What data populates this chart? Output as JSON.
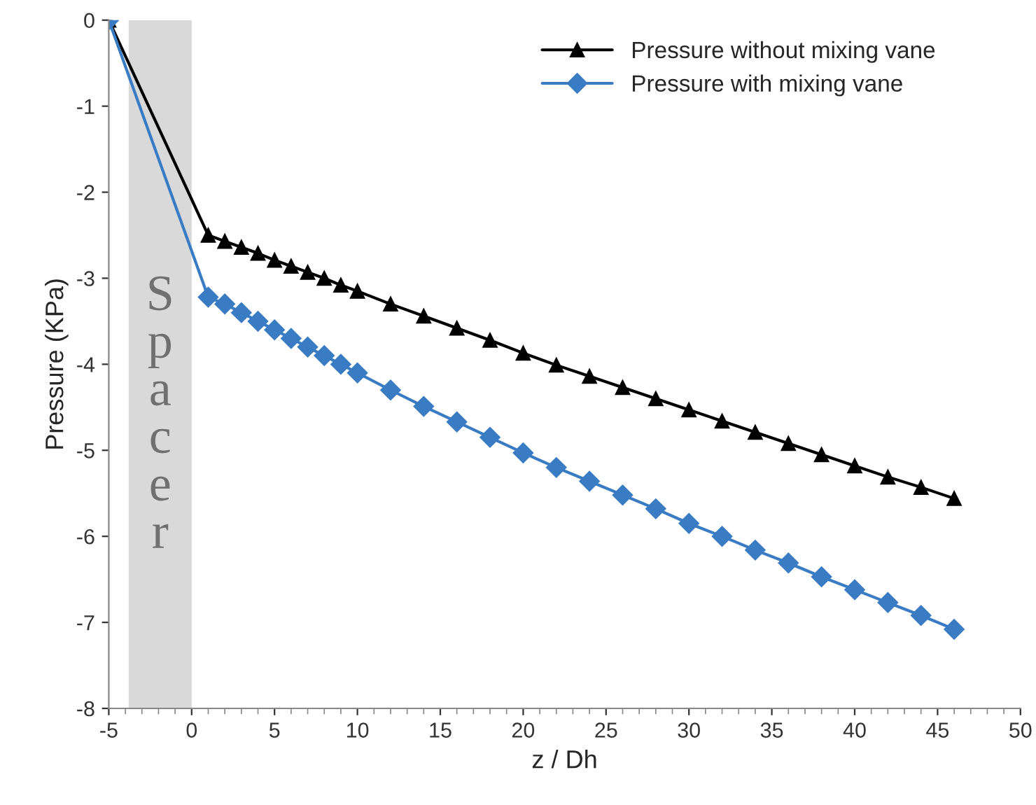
{
  "chart_data": {
    "type": "line",
    "xlabel": "z / Dh",
    "ylabel": "Pressure (KPa)",
    "series": [
      {
        "name": "Pressure without mixing vane",
        "color": "#000000",
        "marker": "triangle",
        "x": [
          -5,
          1,
          2,
          3,
          4,
          5,
          6,
          7,
          8,
          9,
          10,
          12,
          14,
          16,
          18,
          20,
          22,
          24,
          26,
          28,
          30,
          32,
          34,
          36,
          38,
          40,
          42,
          44,
          46
        ],
        "values": [
          0,
          -2.5,
          -2.57,
          -2.64,
          -2.71,
          -2.79,
          -2.86,
          -2.93,
          -3.0,
          -3.08,
          -3.15,
          -3.3,
          -3.44,
          -3.58,
          -3.72,
          -3.87,
          -4.01,
          -4.14,
          -4.27,
          -4.4,
          -4.53,
          -4.66,
          -4.79,
          -4.92,
          -5.05,
          -5.18,
          -5.31,
          -5.43,
          -5.56
        ]
      },
      {
        "name": "Pressure with mixing vane",
        "color": "#3a7cc4",
        "marker": "diamond",
        "x": [
          -5,
          1,
          2,
          3,
          4,
          5,
          6,
          7,
          8,
          9,
          10,
          12,
          14,
          16,
          18,
          20,
          22,
          24,
          26,
          28,
          30,
          32,
          34,
          36,
          38,
          40,
          42,
          44,
          46
        ],
        "values": [
          0,
          -3.22,
          -3.3,
          -3.4,
          -3.5,
          -3.6,
          -3.7,
          -3.8,
          -3.9,
          -4.0,
          -4.1,
          -4.3,
          -4.49,
          -4.67,
          -4.85,
          -5.03,
          -5.2,
          -5.36,
          -5.52,
          -5.68,
          -5.85,
          -6.0,
          -6.16,
          -6.31,
          -6.47,
          -6.62,
          -6.77,
          -6.92,
          -7.08
        ]
      }
    ],
    "bands": [
      {
        "axis": "x",
        "from": -3.8,
        "to": 0,
        "label": "Spacer",
        "color": "#d9d9d9"
      }
    ],
    "xlim": [
      -5,
      50
    ],
    "xticks": [
      -5,
      0,
      5,
      10,
      15,
      20,
      25,
      30,
      35,
      40,
      45,
      50
    ],
    "ylim": [
      -8,
      0
    ],
    "yticks": [
      -8,
      -7,
      -6,
      -5,
      -4,
      -3,
      -2,
      -1,
      0
    ],
    "grid": false,
    "legend": "top right"
  }
}
